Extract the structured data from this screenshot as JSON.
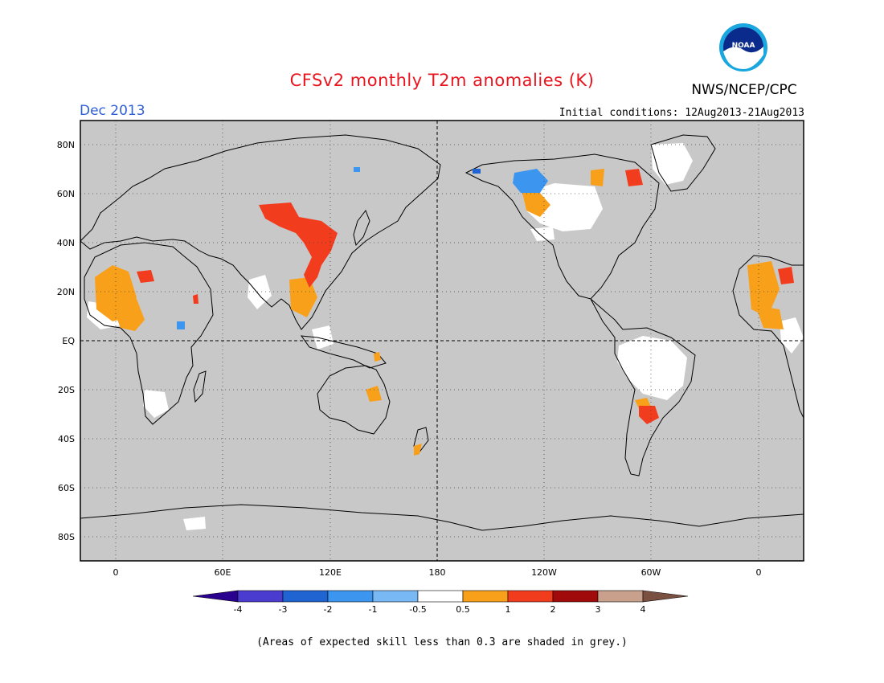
{
  "header": {
    "title": "CFSv2 monthly T2m anomalies (K)",
    "agency": "NWS/NCEP/CPC",
    "logo_text": "NOAA",
    "valid_month": "Dec 2013",
    "initial_conditions": "Initial conditions: 12Aug2013-21Aug2013"
  },
  "map": {
    "projection": "cylindrical equidistant",
    "lon_center": 180,
    "lat_range": [
      -90,
      90
    ],
    "background_color": "#c8c8c8",
    "lat_ticks": [
      "80N",
      "60N",
      "40N",
      "20N",
      "EQ",
      "20S",
      "40S",
      "60S",
      "80S"
    ],
    "lon_ticks": [
      "0",
      "60E",
      "120E",
      "180",
      "120W",
      "60W",
      "0"
    ],
    "grid": "dotted",
    "anomaly_regions": [
      {
        "region": "Mongolia / North China",
        "category": "2"
      },
      {
        "region": "Eastern China",
        "category": "2"
      },
      {
        "region": "Southeast Asia",
        "category": "1"
      },
      {
        "region": "West Africa",
        "category": "1"
      },
      {
        "region": "Sahel",
        "category": "1"
      },
      {
        "region": "Alaska / Western Canada",
        "category": "-1"
      },
      {
        "region": "Northern Canada",
        "category": "0.5"
      },
      {
        "region": "Northeastern Australia",
        "category": "1"
      },
      {
        "region": "New Zealand",
        "category": "1"
      },
      {
        "region": "Paraguay / Northern Argentina",
        "category": "2"
      },
      {
        "region": "Amazon",
        "category": "-0.5"
      }
    ]
  },
  "colorbar": {
    "tick_labels": [
      "-4",
      "-3",
      "-2",
      "-1",
      "-0.5",
      "0.5",
      "1",
      "2",
      "3",
      "4"
    ],
    "colors": [
      "#2a008f",
      "#4a3ccf",
      "#2064d2",
      "#3c96f0",
      "#78b9f5",
      "#ffffff",
      "#f9a01b",
      "#f23c1e",
      "#a00a0a",
      "#c8a08c",
      "#7a5040"
    ]
  },
  "footnote": "(Areas of expected skill less than 0.3 are shaded in grey.)"
}
